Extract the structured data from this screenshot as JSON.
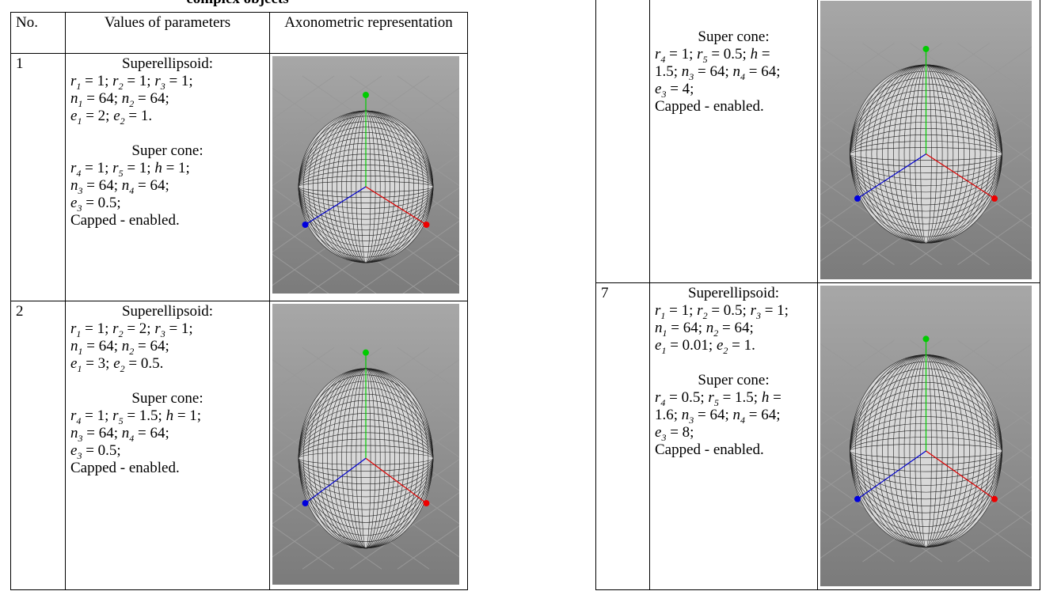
{
  "caption": "complex objects",
  "left_table": {
    "header": [
      "No.",
      "Values of parameters",
      "Axonometric representation"
    ],
    "rows": [
      {
        "no": "1",
        "groups": [
          [
            "Superellipsoid:",
            [
              {
                "var": "r",
                "sub": "1",
                "text": " = 1;"
              },
              {
                "var": "r",
                "sub": "2",
                "text": " = 1;"
              },
              {
                "var": "r",
                "sub": "3",
                "text": " = 1;"
              }
            ],
            [
              {
                "var": "n",
                "sub": "1",
                "text": " = 64;"
              },
              {
                "var": "n",
                "sub": "2",
                "text": " = 64;"
              }
            ],
            [
              {
                "var": "e",
                "sub": "1",
                "text": " = 2;"
              },
              {
                "var": "e",
                "sub": "2",
                "text": " = 1."
              }
            ]
          ],
          [
            "Super cone:",
            [
              {
                "var": "r",
                "sub": "4",
                "text": " = 1;"
              },
              {
                "var": "r",
                "sub": "5",
                "text": " = 1;"
              },
              {
                "var": "h",
                "text": " = 1;"
              }
            ],
            [
              {
                "var": "n",
                "sub": "3",
                "text": " = 64;"
              },
              {
                "var": "n",
                "sub": "4",
                "text": " = 64;"
              }
            ],
            [
              {
                "var": "e",
                "sub": "3",
                "text": " = 0.5;"
              }
            ],
            "Capped  - enabled."
          ]
        ]
      },
      {
        "no": "2",
        "groups": [
          [
            "Superellipsoid:",
            [
              {
                "var": "r",
                "sub": "1",
                "text": " = 1;"
              },
              {
                "var": "r",
                "sub": "2",
                "text": " = 2;"
              },
              {
                "var": "r",
                "sub": "3",
                "text": " = 1;"
              }
            ],
            [
              {
                "var": "n",
                "sub": "1",
                "text": " = 64;"
              },
              {
                "var": "n",
                "sub": "2",
                "text": " = 64;"
              }
            ],
            [
              {
                "var": "e",
                "sub": "1",
                "text": " = 3;"
              },
              {
                "var": "e",
                "sub": "2",
                "text": " = 0.5."
              }
            ]
          ],
          [
            "Super cone:",
            [
              {
                "var": "r",
                "sub": "4",
                "text": " = 1;"
              },
              {
                "var": "r",
                "sub": "5",
                "text": " = 1.5;"
              },
              {
                "var": "h",
                "text": " = 1;"
              }
            ],
            [
              {
                "var": "n",
                "sub": "3",
                "text": " = 64;"
              },
              {
                "var": "n",
                "sub": "4",
                "text": " = 64;"
              }
            ],
            [
              {
                "var": "e",
                "sub": "3",
                "text": " = 0.5;"
              }
            ],
            "Capped  - enabled."
          ]
        ]
      }
    ]
  },
  "right_table": {
    "rows": [
      {
        "groups": [
          [
            "Super cone:",
            [
              {
                "var": "r",
                "sub": "4",
                "text": " = 1;"
              },
              {
                "var": "r",
                "sub": "5",
                "text": " = 0.5;"
              },
              {
                "var": "h",
                "text": " ="
              }
            ],
            [
              "1.5;",
              {
                "var": "n",
                "sub": "3",
                "text": " = 64;"
              },
              {
                "var": "n",
                "sub": "4",
                "text": " = 64;"
              }
            ],
            [
              {
                "var": "e",
                "sub": "3",
                "text": " = 4;"
              }
            ],
            "Capped  - enabled."
          ]
        ]
      },
      {
        "no": "7",
        "groups": [
          [
            "Superellipsoid:",
            [
              {
                "var": "r",
                "sub": "1",
                "text": " = 1;"
              },
              {
                "var": "r",
                "sub": "2",
                "text": " = 0.5;"
              },
              {
                "var": "r",
                "sub": "3",
                "text": " = 1;"
              }
            ],
            [
              {
                "var": "n",
                "sub": "1",
                "text": " = 64;"
              },
              {
                "var": "n",
                "sub": "2",
                "text": " = 64;"
              }
            ],
            [
              {
                "var": "e",
                "sub": "1",
                "text": " = 0.01;"
              },
              {
                "var": "e",
                "sub": "2",
                "text": " = 1."
              }
            ]
          ],
          [
            "Super cone:",
            [
              {
                "var": "r",
                "sub": "4",
                "text": " = 0.5;"
              },
              {
                "var": "r",
                "sub": "5",
                "text": " = 1.5;"
              },
              {
                "var": "h",
                "text": " ="
              }
            ],
            [
              "1.6;",
              {
                "var": "n",
                "sub": "3",
                "text": " = 64;"
              },
              {
                "var": "n",
                "sub": "4",
                "text": " = 64;"
              }
            ],
            [
              {
                "var": "e",
                "sub": "3",
                "text": " = 8;"
              }
            ],
            "Capped  - enabled."
          ]
        ]
      }
    ]
  }
}
